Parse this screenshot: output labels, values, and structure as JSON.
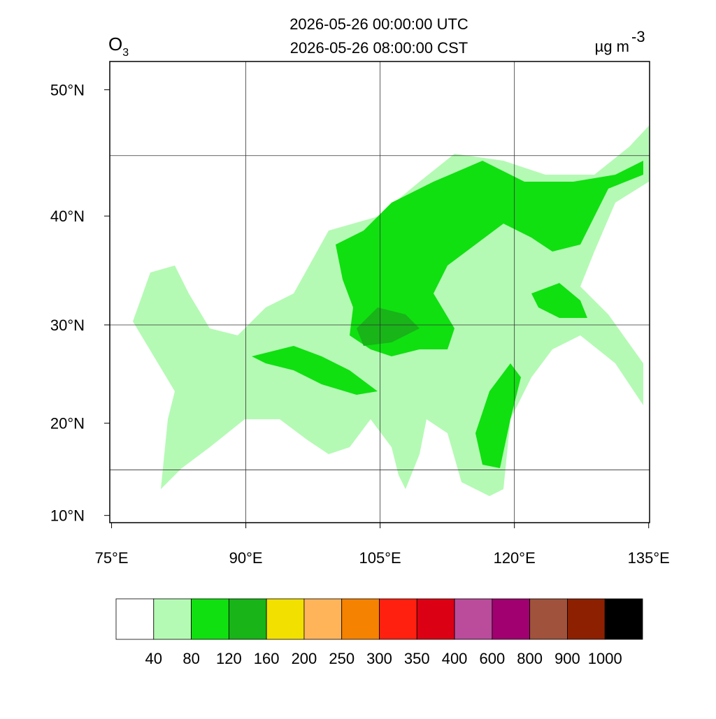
{
  "chart_data": {
    "type": "map",
    "title_lines": [
      "2026-05-26 00:00:00 UTC",
      "2026-05-26 08:00:00 CST"
    ],
    "variable": {
      "text": "O",
      "subscript": "3"
    },
    "unit": {
      "text": "µg m",
      "superscript": "-3"
    },
    "projection": "mercator",
    "xlim": [
      74.8,
      135.1
    ],
    "ylim": [
      9.2,
      52
    ],
    "xticks": [
      {
        "value": 75,
        "label": "75°E"
      },
      {
        "value": 90,
        "label": "90°E"
      },
      {
        "value": 105,
        "label": "105°E"
      },
      {
        "value": 120,
        "label": "120°E"
      },
      {
        "value": 135,
        "label": "135°E"
      }
    ],
    "yticks": [
      {
        "value": 10,
        "label": "10°N"
      },
      {
        "value": 20,
        "label": "20°N"
      },
      {
        "value": 30,
        "label": "30°N"
      },
      {
        "value": 40,
        "label": "40°N"
      },
      {
        "value": 50,
        "label": "50°N"
      }
    ],
    "grid_lons": [
      90,
      105,
      120
    ],
    "grid_lats": [
      15,
      30,
      45
    ],
    "colorbar": {
      "levels": [
        40,
        80,
        120,
        160,
        200,
        250,
        300,
        350,
        400,
        600,
        800,
        900,
        1000
      ],
      "colors": [
        "#ffffff",
        "#b4fab4",
        "#10e010",
        "#18b418",
        "#f2e000",
        "#ffb45a",
        "#f58200",
        "#ff2010",
        "#dc0014",
        "#bb4c9c",
        "#a00070",
        "#a0523c",
        "#8c2000",
        "#000000"
      ]
    }
  }
}
